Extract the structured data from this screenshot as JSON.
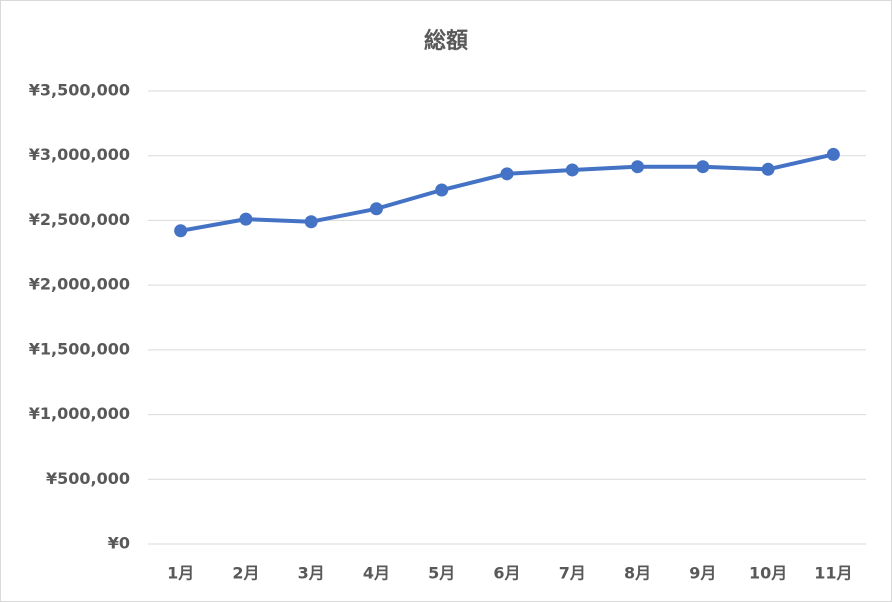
{
  "chart_data": {
    "type": "line",
    "title": "総額",
    "categories": [
      "1月",
      "2月",
      "3月",
      "4月",
      "5月",
      "6月",
      "7月",
      "8月",
      "9月",
      "10月",
      "11月"
    ],
    "series": [
      {
        "color": "#4472c4",
        "values": [
          2420000,
          2510000,
          2490000,
          2590000,
          2735000,
          2860000,
          2890000,
          2915000,
          2915000,
          2895000,
          3010000
        ]
      }
    ],
    "ylim": [
      0,
      3500000
    ],
    "yticks": [
      {
        "value": 0,
        "label": "¥0"
      },
      {
        "value": 500000,
        "label": "¥500,000"
      },
      {
        "value": 1000000,
        "label": "¥1,000,000"
      },
      {
        "value": 1500000,
        "label": "¥1,500,000"
      },
      {
        "value": 2000000,
        "label": "¥2,000,000"
      },
      {
        "value": 2500000,
        "label": "¥2,500,000"
      },
      {
        "value": 3000000,
        "label": "¥3,000,000"
      },
      {
        "value": 3500000,
        "label": "¥3,500,000"
      }
    ],
    "grid": true
  }
}
